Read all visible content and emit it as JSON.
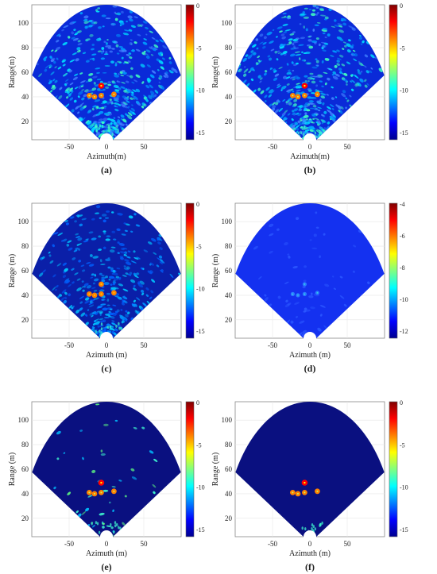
{
  "figure": {
    "panels": [
      {
        "caption": "(a)",
        "xlabel": "Azimuth(m)",
        "ylabel": "Range(m)",
        "noise": "strong",
        "targets": "hot",
        "cbar_ticks": [
          "0",
          "-5",
          "-10",
          "-15"
        ]
      },
      {
        "caption": "(b)",
        "xlabel": "Azimuth(m)",
        "ylabel": "Range(m)",
        "noise": "strong",
        "targets": "hot",
        "cbar_ticks": [
          "0",
          "-5",
          "-10",
          "-15"
        ]
      },
      {
        "caption": "(c)",
        "xlabel": "Azimuth (m)",
        "ylabel": "Range (m)",
        "noise": "dark",
        "targets": "mid",
        "cbar_ticks": [
          "0",
          "-5",
          "-10",
          "-15"
        ]
      },
      {
        "caption": "(d)",
        "xlabel": "Azimuth (m)",
        "ylabel": "Range (m)",
        "noise": "flat",
        "targets": "faint",
        "cbar_ticks": [
          "-4",
          "-6",
          "-8",
          "-10",
          "-12"
        ]
      },
      {
        "caption": "(e)",
        "xlabel": "Azimuth (m)",
        "ylabel": "Range (m)",
        "noise": "sparse",
        "targets": "hot",
        "cbar_ticks": [
          "0",
          "-5",
          "-10",
          "-15"
        ]
      },
      {
        "caption": "(f)",
        "xlabel": "Azimuth (m)",
        "ylabel": "Range (m)",
        "noise": "none",
        "targets": "hot",
        "cbar_ticks": [
          "0",
          "-5",
          "-10",
          "-15"
        ]
      }
    ]
  },
  "chart_data": {
    "type": "heatmap",
    "x_ticks": [
      "-50",
      "0",
      "50"
    ],
    "y_ticks": [
      "20",
      "40",
      "60",
      "80",
      "100"
    ],
    "xlim": [
      -100,
      100
    ],
    "ylim": [
      5,
      115
    ],
    "sector_max_range": 115,
    "sector_half_angle_deg": 60,
    "colorbar_range": [
      -15,
      0
    ],
    "colormap": [
      "#00008f",
      "#0000ff",
      "#0080ff",
      "#00ffff",
      "#80ff80",
      "#ffff00",
      "#ff8000",
      "#ff0000",
      "#800000"
    ],
    "targets": [
      {
        "x": -7,
        "y": 49
      },
      {
        "x": -7,
        "y": 41
      },
      {
        "x": -23,
        "y": 41
      },
      {
        "x": -16,
        "y": 40
      },
      {
        "x": 10,
        "y": 42
      }
    ]
  }
}
